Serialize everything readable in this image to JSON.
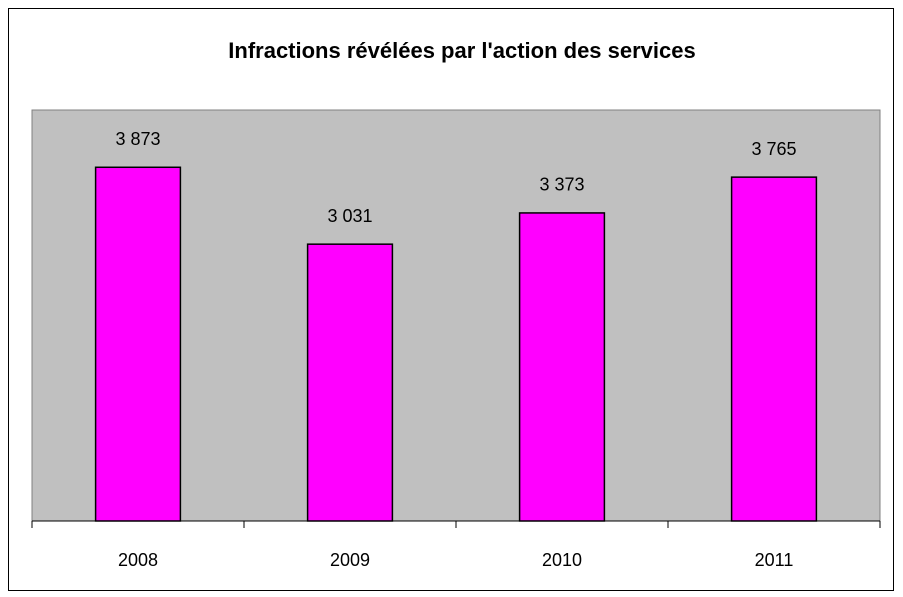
{
  "chart_data": {
    "type": "bar",
    "title": "Infractions révélées par l'action des services",
    "categories": [
      "2008",
      "2009",
      "2010",
      "2011"
    ],
    "values": [
      3873,
      3031,
      3373,
      3765
    ],
    "value_labels": [
      "3 873",
      "3 031",
      "3 373",
      "3 765"
    ],
    "color": "#ff00ff",
    "plot_background": "#c0c0c0",
    "ylim": [
      0,
      4500
    ]
  }
}
